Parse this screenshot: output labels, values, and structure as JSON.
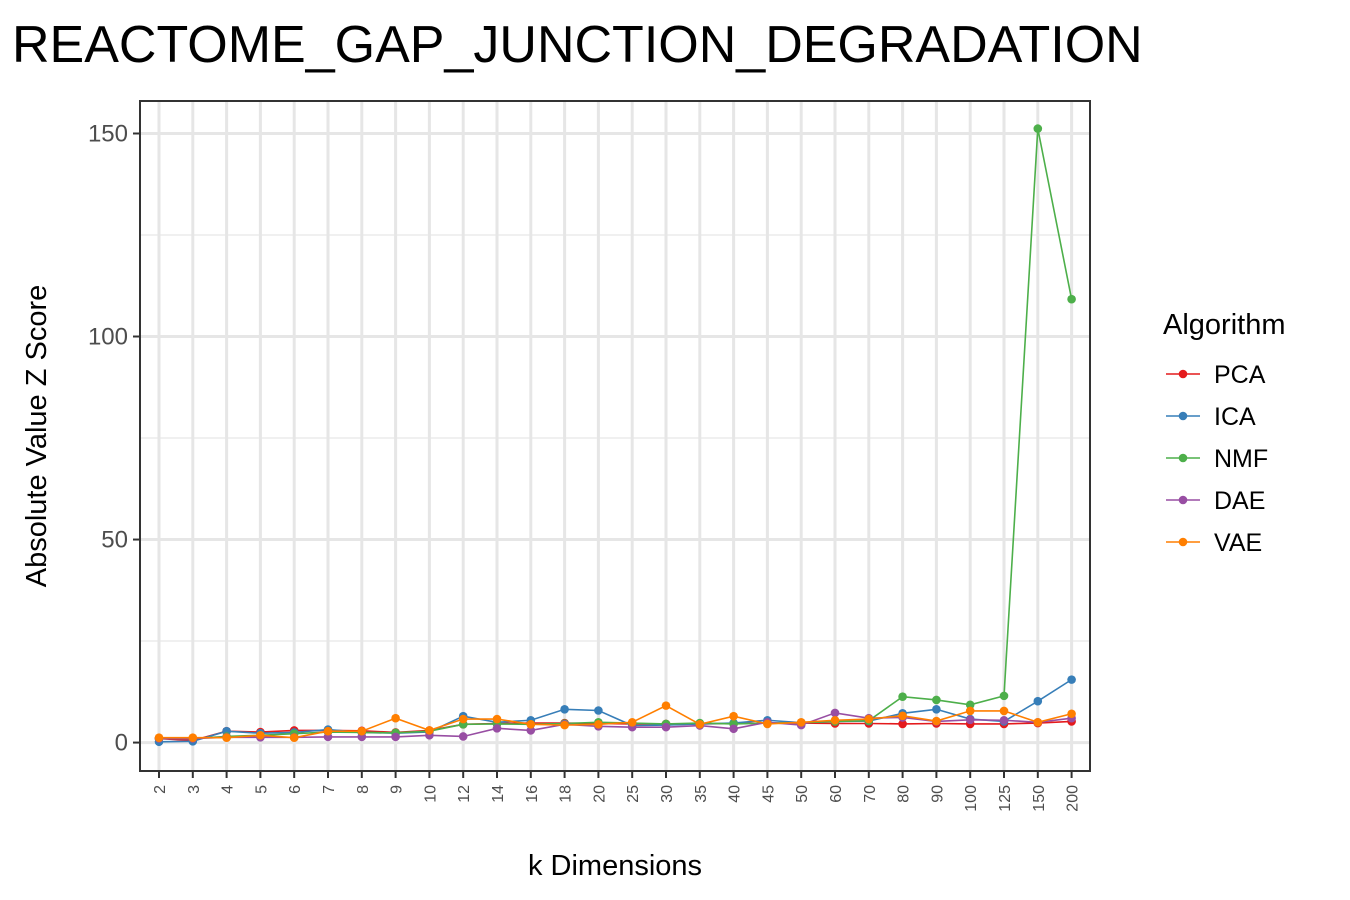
{
  "chart_data": {
    "type": "line",
    "title": "REACTOME_GAP_JUNCTION_DEGRADATION",
    "xlabel": "k Dimensions",
    "ylabel": "Absolute Value Z Score",
    "categories": [
      "2",
      "3",
      "4",
      "5",
      "6",
      "7",
      "8",
      "9",
      "10",
      "12",
      "14",
      "16",
      "18",
      "20",
      "25",
      "30",
      "35",
      "40",
      "45",
      "50",
      "60",
      "70",
      "80",
      "90",
      "100",
      "125",
      "150",
      "200"
    ],
    "ylim": [
      -7,
      158
    ],
    "yticks": [
      0,
      50,
      100,
      150
    ],
    "grid": true,
    "legend": {
      "title": "Algorithm",
      "position": "right"
    },
    "series": [
      {
        "name": "PCA",
        "color": "#E41A1C",
        "values": [
          1.0,
          0.5,
          2.8,
          2.6,
          3.0,
          3.0,
          2.9,
          2.5,
          3.0,
          4.5,
          4.7,
          4.8,
          4.8,
          4.7,
          4.6,
          4.6,
          4.6,
          4.7,
          4.8,
          4.8,
          4.7,
          4.7,
          4.6,
          4.7,
          4.6,
          4.6,
          4.8,
          5.2
        ]
      },
      {
        "name": "ICA",
        "color": "#377EB8",
        "values": [
          0.2,
          0.3,
          2.8,
          2.3,
          2.5,
          3.2,
          2.5,
          2.3,
          2.6,
          6.5,
          5.0,
          5.5,
          8.2,
          7.9,
          4.2,
          4.3,
          4.6,
          4.8,
          5.5,
          4.9,
          5.2,
          5.3,
          7.2,
          8.2,
          5.8,
          5.2,
          10.2,
          15.5
        ]
      },
      {
        "name": "NMF",
        "color": "#4DAF4A",
        "values": [
          1.0,
          1.0,
          1.5,
          1.8,
          2.2,
          2.6,
          2.5,
          2.4,
          2.8,
          4.5,
          4.6,
          4.5,
          4.7,
          5.0,
          4.8,
          4.6,
          4.8,
          4.6,
          4.8,
          4.9,
          5.2,
          5.4,
          11.3,
          10.5,
          9.3,
          11.5,
          151.2,
          109.2
        ]
      },
      {
        "name": "DAE",
        "color": "#984EA3",
        "values": [
          1.0,
          1.0,
          1.3,
          1.3,
          1.3,
          1.4,
          1.4,
          1.4,
          1.8,
          1.5,
          3.5,
          3.0,
          4.5,
          4.0,
          3.8,
          3.8,
          4.2,
          3.4,
          5.0,
          4.3,
          7.3,
          6.0,
          6.2,
          5.2,
          5.6,
          5.5,
          5.0,
          6.0
        ]
      },
      {
        "name": "VAE",
        "color": "#FF7F00",
        "values": [
          1.2,
          1.2,
          1.2,
          1.8,
          1.2,
          2.8,
          2.8,
          6.0,
          3.0,
          5.8,
          5.8,
          4.5,
          4.3,
          4.5,
          5.0,
          9.1,
          4.5,
          6.5,
          4.6,
          5.0,
          5.5,
          5.8,
          6.6,
          5.3,
          7.8,
          7.8,
          5.0,
          7.1
        ]
      }
    ]
  }
}
